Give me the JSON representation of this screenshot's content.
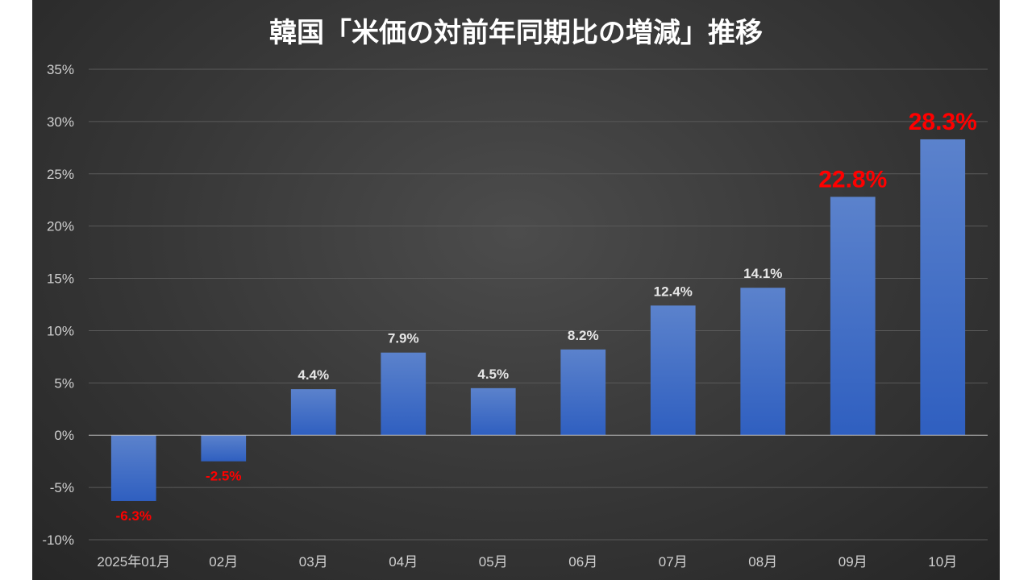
{
  "chart_data": {
    "type": "bar",
    "title": "韓国「米価の対前年同期比の増減」推移",
    "xlabel": "",
    "ylabel": "",
    "categories": [
      "2025年01月",
      "02月",
      "03月",
      "04月",
      "05月",
      "06月",
      "07月",
      "08月",
      "09月",
      "10月"
    ],
    "values": [
      -6.3,
      -2.5,
      4.4,
      7.9,
      4.5,
      8.2,
      12.4,
      14.1,
      22.8,
      28.3
    ],
    "data_labels": [
      "-6.3%",
      "-2.5%",
      "4.4%",
      "7.9%",
      "4.5%",
      "8.2%",
      "12.4%",
      "14.1%",
      "22.8%",
      "28.3%"
    ],
    "ylim": [
      -10,
      35
    ],
    "yticks": [
      35,
      30,
      25,
      20,
      15,
      10,
      5,
      0,
      -5,
      -10
    ],
    "ytick_labels": [
      "35%",
      "30%",
      "25%",
      "20%",
      "15%",
      "10%",
      "5%",
      "0%",
      "-5%",
      "-10%"
    ],
    "grid": true,
    "legend": "none",
    "colors": {
      "bar_top": "#5b82cc",
      "bar_bottom": "#2f5fc0",
      "label_default": "#e6e6e6",
      "label_highlight": "#ff0000"
    }
  }
}
